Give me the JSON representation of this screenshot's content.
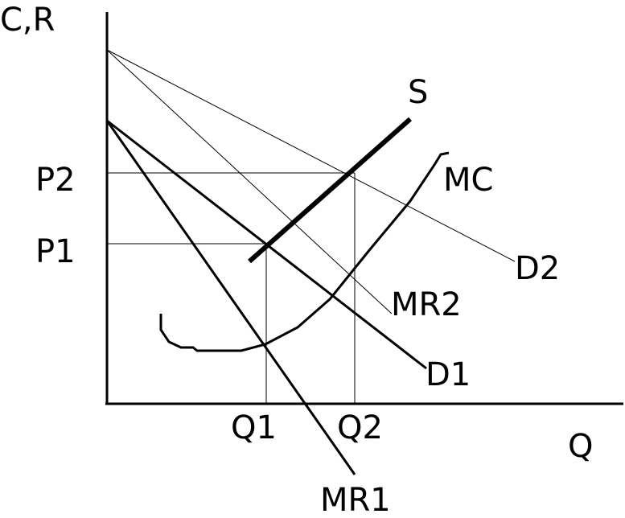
{
  "axes": {
    "y_label": "C,R",
    "x_label": "Q"
  },
  "ticks": {
    "p2": "P2",
    "p1": "P1",
    "q1": "Q1",
    "q2": "Q2"
  },
  "curves": {
    "s": "S",
    "mc": "MC",
    "d2": "D2",
    "mr2": "MR2",
    "d1": "D1",
    "mr1": "MR1"
  }
}
